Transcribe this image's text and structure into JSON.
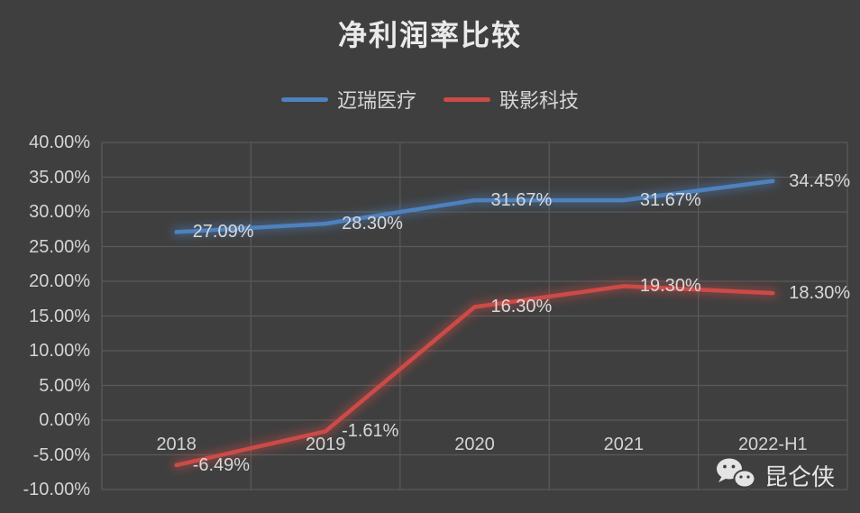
{
  "title": "净利润率比较",
  "watermark": {
    "icon": "wechat-icon",
    "text": "昆仑侠"
  },
  "colors": {
    "background": "#3F3F3F",
    "gridline": "#595959",
    "tick_text": "#D4D4D4",
    "label_text": "#D9D9D9",
    "title_text": "#EAEAEA",
    "series_blue": "#4E81BE",
    "series_red": "#CC4B47"
  },
  "chart_data": {
    "type": "line",
    "title": "净利润率比较",
    "categories": [
      "2018",
      "2019",
      "2020",
      "2021",
      "2022-H1"
    ],
    "series": [
      {
        "name": "迈瑞医疗",
        "color_key": "series_blue",
        "values": [
          27.09,
          28.3,
          31.67,
          31.67,
          34.45
        ],
        "labels": [
          "27.09%",
          "28.30%",
          "31.67%",
          "31.67%",
          "34.45%"
        ]
      },
      {
        "name": "联影科技",
        "color_key": "series_red",
        "values": [
          -6.49,
          -1.61,
          16.3,
          19.3,
          18.3
        ],
        "labels": [
          "-6.49%",
          "-1.61%",
          "16.30%",
          "19.30%",
          "18.30%"
        ]
      }
    ],
    "ylim": [
      -10,
      40
    ],
    "ytick_step": 5,
    "ytick_labels": [
      "40.00%",
      "35.00%",
      "30.00%",
      "25.00%",
      "20.00%",
      "15.00%",
      "10.00%",
      "5.00%",
      "0.00%",
      "-5.00%",
      "-10.00%"
    ],
    "grid": true,
    "legend_position": "top",
    "xlabel": "",
    "ylabel": ""
  }
}
